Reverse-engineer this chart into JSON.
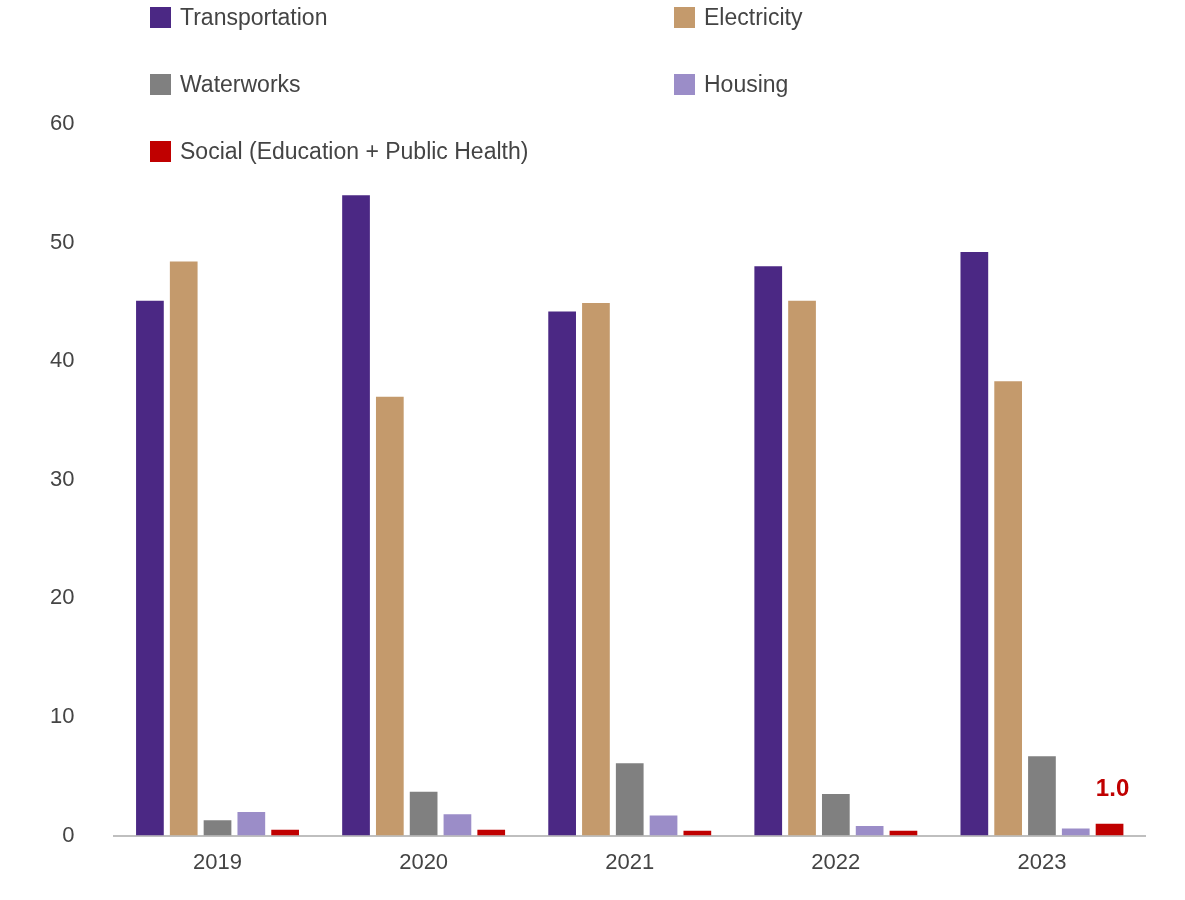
{
  "chart_data": {
    "type": "bar",
    "categories": [
      "2019",
      "2020",
      "2021",
      "2022",
      "2023"
    ],
    "series": [
      {
        "name": "Transportation",
        "color": "#4b2884",
        "values": [
          45.1,
          54.0,
          44.2,
          48.0,
          49.2
        ]
      },
      {
        "name": "Electricity",
        "color": "#c49a6c",
        "values": [
          48.4,
          37.0,
          44.9,
          45.1,
          38.3
        ]
      },
      {
        "name": "Waterworks",
        "color": "#808080",
        "values": [
          1.3,
          3.7,
          6.1,
          3.5,
          6.7
        ]
      },
      {
        "name": "Housing",
        "color": "#9b8dc8",
        "values": [
          2.0,
          1.8,
          1.7,
          0.8,
          0.6
        ]
      },
      {
        "name": "Social (Education + Public Health)",
        "color": "#c00000",
        "values": [
          0.5,
          0.5,
          0.4,
          0.4,
          1.0
        ],
        "value_labels": [
          null,
          null,
          null,
          null,
          "1.0"
        ]
      }
    ],
    "ylim": [
      0,
      60
    ],
    "yticks": [
      0,
      10,
      20,
      30,
      40,
      50,
      60
    ],
    "grid": false,
    "legend": "top"
  }
}
